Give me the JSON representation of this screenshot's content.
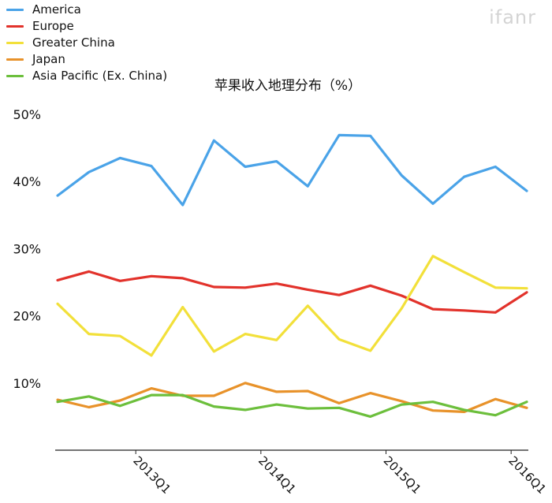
{
  "watermark": "ifanr",
  "chart_data": {
    "type": "line",
    "title": "苹果收入地理分布（%）",
    "xlabel": "",
    "ylabel": "",
    "ylim": [
      0,
      50
    ],
    "y_ticks": [
      {
        "value": 10,
        "label": "10%"
      },
      {
        "value": 20,
        "label": "20%"
      },
      {
        "value": 30,
        "label": "30%"
      },
      {
        "value": 40,
        "label": "40%"
      },
      {
        "value": 50,
        "label": "50%"
      }
    ],
    "x_tick_labels": [
      {
        "index": 2.5,
        "label": "2013Q1"
      },
      {
        "index": 6.5,
        "label": "2014Q1"
      },
      {
        "index": 10.5,
        "label": "2015Q1"
      },
      {
        "index": 14.5,
        "label": "2016Q1"
      }
    ],
    "grid": false,
    "legend_position": "top-left",
    "series": [
      {
        "name": "America",
        "color": "#4aa3e8",
        "values": [
          37.9,
          41.4,
          43.5,
          42.3,
          36.5,
          46.1,
          42.2,
          43.0,
          39.3,
          46.9,
          46.8,
          40.9,
          36.7,
          40.7,
          42.2,
          38.6
        ]
      },
      {
        "name": "Europe",
        "color": "#e2322b",
        "values": [
          25.3,
          26.6,
          25.2,
          25.9,
          25.6,
          24.3,
          24.2,
          24.8,
          23.9,
          23.1,
          24.5,
          23.0,
          21.0,
          20.8,
          20.5,
          23.5
        ]
      },
      {
        "name": "Greater China",
        "color": "#f2e03a",
        "values": [
          21.8,
          17.3,
          17.0,
          14.1,
          21.3,
          14.7,
          17.3,
          16.4,
          21.5,
          16.5,
          14.8,
          21.1,
          28.9,
          26.5,
          24.2,
          24.1
        ]
      },
      {
        "name": "Japan",
        "color": "#e8922a",
        "values": [
          7.5,
          6.4,
          7.4,
          9.2,
          8.1,
          8.1,
          10.0,
          8.7,
          8.8,
          7.0,
          8.5,
          7.3,
          5.9,
          5.7,
          7.6,
          6.3
        ]
      },
      {
        "name": "Asia Pacific (Ex. China)",
        "color": "#6cbf3c",
        "values": [
          7.2,
          8.0,
          6.6,
          8.2,
          8.2,
          6.5,
          6.0,
          6.8,
          6.2,
          6.3,
          5.0,
          6.8,
          7.2,
          6.0,
          5.2,
          7.2
        ]
      }
    ]
  }
}
